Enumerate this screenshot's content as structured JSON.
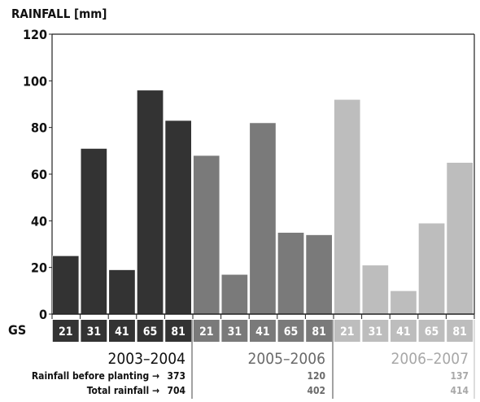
{
  "chart_data": {
    "type": "bar",
    "ylabel": "RAINFALL [mm]",
    "ylim": [
      0,
      120
    ],
    "yticks": [
      "0",
      "20",
      "40",
      "60",
      "80",
      "100",
      "120"
    ],
    "category_axis_label": "GS",
    "grid": false,
    "series": [
      {
        "name": "2003–2004",
        "color": "#333333",
        "categories": [
          "21",
          "31",
          "41",
          "65",
          "81"
        ],
        "values": [
          25,
          71,
          19,
          96,
          83
        ],
        "rainfall_before_planting": "373",
        "total_rainfall": "704"
      },
      {
        "name": "2005–2006",
        "color": "#7a7a7a",
        "categories": [
          "21",
          "31",
          "41",
          "65",
          "81"
        ],
        "values": [
          68,
          17,
          82,
          35,
          34
        ],
        "rainfall_before_planting": "120",
        "total_rainfall": "402"
      },
      {
        "name": "2006–2007",
        "color": "#bdbdbd",
        "categories": [
          "21",
          "31",
          "41",
          "65",
          "81"
        ],
        "values": [
          92,
          21,
          10,
          39,
          65
        ],
        "rainfall_before_planting": "137",
        "total_rainfall": "414"
      }
    ],
    "annotations": {
      "rainfall_before_planting_label": "Rainfall before planting →",
      "total_rainfall_label": "Total rainfall →"
    }
  }
}
